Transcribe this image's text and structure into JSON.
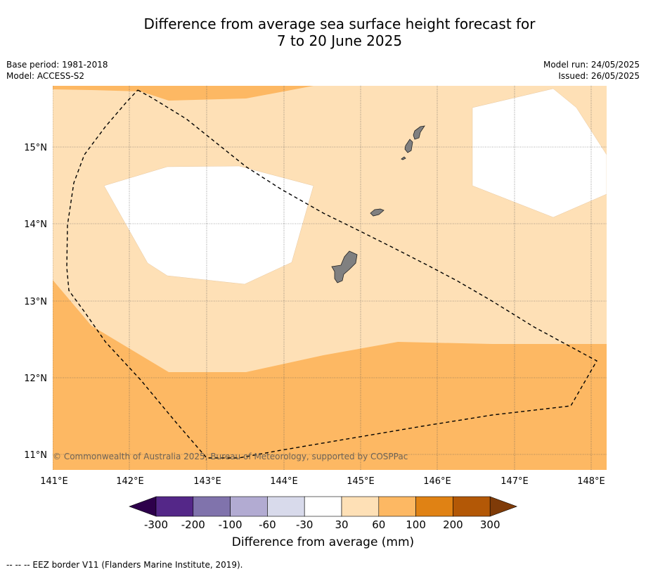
{
  "title_line1": "Difference from average sea surface height forecast for",
  "title_line2": "7 to 20 June 2025",
  "base_period": "Base period: 1981-2018",
  "model": "Model: ACCESS-S2",
  "model_run": "Model run: 24/05/2025",
  "issued": "Issued: 26/05/2025",
  "copyright": "© Commonwealth of Australia 2025, Bureau of Meteorology, supported by COSPPac",
  "lon_labels": [
    "141°E",
    "142°E",
    "143°E",
    "144°E",
    "145°E",
    "146°E",
    "147°E",
    "148°E"
  ],
  "lat_labels": [
    "15°N",
    "14°N",
    "13°N",
    "12°N",
    "11°N"
  ],
  "colorbar": {
    "ticks": [
      "-300",
      "-200",
      "-100",
      "-60",
      "-30",
      "30",
      "60",
      "100",
      "200",
      "300"
    ],
    "colors": [
      "#2d004b",
      "#542788",
      "#8073ac",
      "#b2abd2",
      "#d8daeb",
      "#ffffff",
      "#fee0b6",
      "#fdb863",
      "#e08214",
      "#b35806",
      "#7f3b08"
    ],
    "label": "Difference from average (mm)"
  },
  "legend_note": "--  --  -- EEZ border V11 (Flanders Marine Institute, 2019)."
}
